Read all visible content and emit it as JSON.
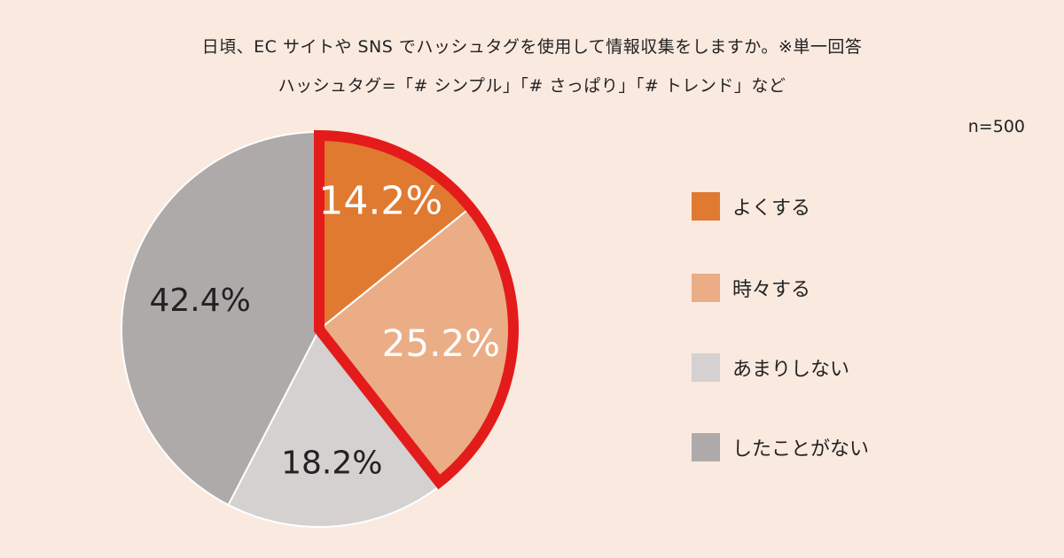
{
  "header": {
    "title_line1": "日頃、EC サイトや SNS でハッシュタグを使用して情報収集をしますか。※単一回答",
    "title_line2": "ハッシュタグ=「# シンプル」「# さっぱり」「# トレンド」など",
    "sample_size": "n=500"
  },
  "chart_data": {
    "type": "pie",
    "title": "日頃、EC サイトや SNS でハッシュタグを使用して情報収集をしますか。※単一回答",
    "subtitle": "ハッシュタグ=「# シンプル」「# さっぱり」「# トレンド」など",
    "sample_size": "n=500",
    "slices": [
      {
        "label": "よくする",
        "value": 14.2,
        "value_label": "14.2%",
        "color": "#e07a30",
        "label_color": "#ffffff"
      },
      {
        "label": "時々する",
        "value": 25.2,
        "value_label": "25.2%",
        "color": "#eaad86",
        "label_color": "#ffffff"
      },
      {
        "label": "あまりしない",
        "value": 18.2,
        "value_label": "18.2%",
        "color": "#d4d1d0",
        "label_color": "#222222"
      },
      {
        "label": "したことがない",
        "value": 42.4,
        "value_label": "42.4%",
        "color": "#aeaaa9",
        "label_color": "#222222"
      }
    ],
    "start": "12 o'clock",
    "direction": "clockwise",
    "highlighted_slices": [
      "よくする",
      "時々する"
    ],
    "highlight_color": "#e41b1b",
    "legend_position": "right"
  }
}
